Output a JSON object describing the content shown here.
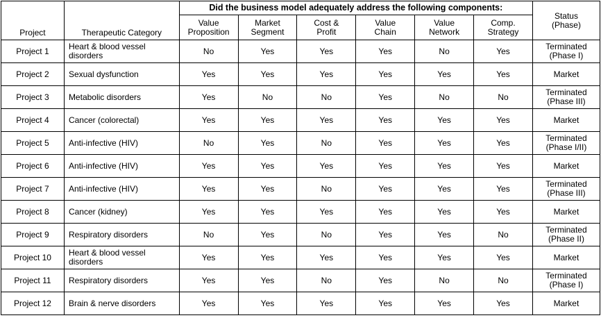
{
  "table": {
    "group_header": "Did the business model adequately address the following components:",
    "headers": {
      "project": "Project",
      "category": "Therapeutic Category",
      "value_prop": [
        "Value",
        "Proposition"
      ],
      "market_seg": [
        "Market",
        "Segment"
      ],
      "cost_profit": [
        "Cost &",
        "Profit"
      ],
      "value_chain": [
        "Value",
        "Chain"
      ],
      "value_network": [
        "Value",
        "Network"
      ],
      "comp_strategy": [
        "Comp.",
        "Strategy"
      ],
      "status": [
        "Status",
        "(Phase)"
      ]
    },
    "rows": [
      {
        "project": "Project 1",
        "category": [
          "Heart & blood vessel",
          "disorders"
        ],
        "vp": "No",
        "ms": "Yes",
        "cp": "Yes",
        "vc": "Yes",
        "vn": "No",
        "cs": "Yes",
        "status": [
          "Terminated",
          "(Phase I)"
        ]
      },
      {
        "project": "Project 2",
        "category": [
          "Sexual dysfunction"
        ],
        "vp": "Yes",
        "ms": "Yes",
        "cp": "Yes",
        "vc": "Yes",
        "vn": "Yes",
        "cs": "Yes",
        "status": [
          "Market"
        ]
      },
      {
        "project": "Project 3",
        "category": [
          "Metabolic disorders"
        ],
        "vp": "Yes",
        "ms": "No",
        "cp": "No",
        "vc": "Yes",
        "vn": "No",
        "cs": "No",
        "status": [
          "Terminated",
          "(Phase III)"
        ]
      },
      {
        "project": "Project 4",
        "category": [
          "Cancer (colorectal)"
        ],
        "vp": "Yes",
        "ms": "Yes",
        "cp": "Yes",
        "vc": "Yes",
        "vn": "Yes",
        "cs": "Yes",
        "status": [
          "Market"
        ]
      },
      {
        "project": "Project 5",
        "category": [
          "Anti-infective (HIV)"
        ],
        "vp": "No",
        "ms": "Yes",
        "cp": "No",
        "vc": "Yes",
        "vn": "Yes",
        "cs": "Yes",
        "status": [
          "Terminated",
          "(Phase I/II)"
        ]
      },
      {
        "project": "Project 6",
        "category": [
          "Anti-infective (HIV)"
        ],
        "vp": "Yes",
        "ms": "Yes",
        "cp": "Yes",
        "vc": "Yes",
        "vn": "Yes",
        "cs": "Yes",
        "status": [
          "Market"
        ]
      },
      {
        "project": "Project 7",
        "category": [
          "Anti-infective (HIV)"
        ],
        "vp": "Yes",
        "ms": "Yes",
        "cp": "No",
        "vc": "Yes",
        "vn": "Yes",
        "cs": "Yes",
        "status": [
          "Terminated",
          "(Phase III)"
        ]
      },
      {
        "project": "Project 8",
        "category": [
          "Cancer (kidney)"
        ],
        "vp": "Yes",
        "ms": "Yes",
        "cp": "Yes",
        "vc": "Yes",
        "vn": "Yes",
        "cs": "Yes",
        "status": [
          "Market"
        ]
      },
      {
        "project": "Project 9",
        "category": [
          "Respiratory disorders"
        ],
        "vp": "No",
        "ms": "Yes",
        "cp": "No",
        "vc": "Yes",
        "vn": "Yes",
        "cs": "No",
        "status": [
          "Terminated",
          "(Phase II)"
        ]
      },
      {
        "project": "Project 10",
        "category": [
          "Heart & blood vessel",
          "disorders"
        ],
        "vp": "Yes",
        "ms": "Yes",
        "cp": "Yes",
        "vc": "Yes",
        "vn": "Yes",
        "cs": "Yes",
        "status": [
          "Market"
        ]
      },
      {
        "project": "Project 11",
        "category": [
          "Respiratory disorders"
        ],
        "vp": "Yes",
        "ms": "Yes",
        "cp": "No",
        "vc": "Yes",
        "vn": "No",
        "cs": "No",
        "status": [
          "Terminated",
          "(Phase I)"
        ]
      },
      {
        "project": "Project 12",
        "category": [
          "Brain & nerve disorders"
        ],
        "vp": "Yes",
        "ms": "Yes",
        "cp": "Yes",
        "vc": "Yes",
        "vn": "Yes",
        "cs": "Yes",
        "status": [
          "Market"
        ]
      }
    ]
  }
}
